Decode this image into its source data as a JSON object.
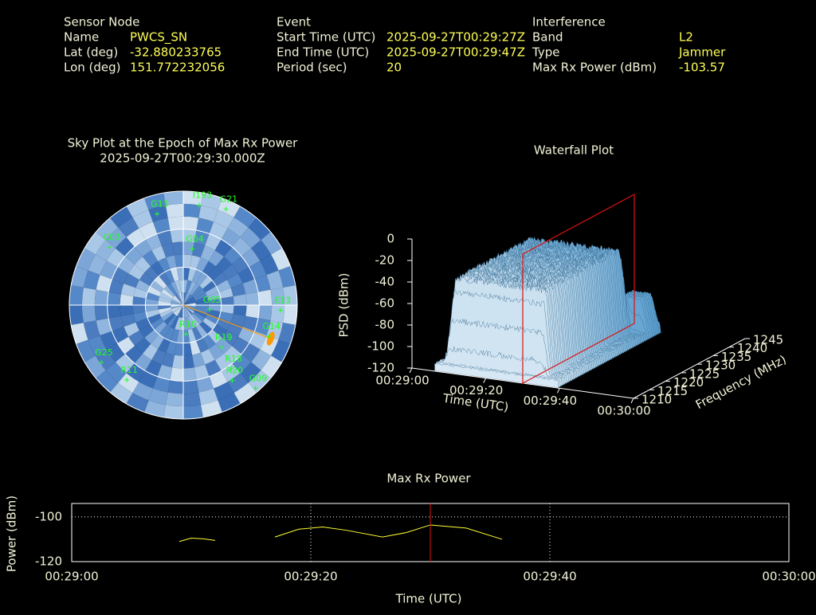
{
  "header": {
    "sensor": {
      "title": "Sensor Node",
      "rows": [
        [
          "Name",
          "PWCS_SN"
        ],
        [
          "Lat (deg)",
          "-32.880233765"
        ],
        [
          "Lon (deg)",
          "151.772232056"
        ]
      ]
    },
    "event": {
      "title": "Event",
      "rows": [
        [
          "Start Time (UTC)",
          "2025-09-27T00:29:27Z"
        ],
        [
          "End Time (UTC)",
          "2025-09-27T00:29:47Z"
        ],
        [
          "Period (sec)",
          "20"
        ]
      ]
    },
    "interference": {
      "title": "Interference",
      "rows": [
        [
          "Band",
          "L2"
        ],
        [
          "Type",
          "Jammer"
        ],
        [
          "Max Rx Power (dBm)",
          "-103.57"
        ]
      ]
    }
  },
  "chart_data": [
    {
      "type": "polar",
      "title": "Sky Plot at the Epoch of Max Rx Power",
      "subtitle": "2025-09-27T00:29:30.000Z",
      "rticks": [
        0,
        30,
        60
      ],
      "satellites": [
        {
          "label": "G13",
          "az": 344,
          "el": 15
        },
        {
          "label": "I193",
          "az": 9,
          "el": 10
        },
        {
          "label": "G21",
          "az": 24,
          "el": 7
        },
        {
          "label": "G14",
          "az": 110,
          "el": 18
        },
        {
          "label": "E13",
          "az": 93,
          "el": 13
        },
        {
          "label": "G25",
          "az": 235,
          "el": 11
        },
        {
          "label": "R11",
          "az": 217,
          "el": 16
        },
        {
          "label": "R19",
          "az": 138,
          "el": 45
        },
        {
          "label": "R18",
          "az": 143,
          "el": 27
        },
        {
          "label": "G09",
          "az": 139,
          "el": 3
        },
        {
          "label": "G04",
          "az": 9,
          "el": 45
        },
        {
          "label": "G05",
          "az": 100,
          "el": 69
        },
        {
          "label": "R10",
          "az": 175,
          "el": 67
        },
        {
          "label": "C03",
          "az": 308,
          "el": 16
        },
        {
          "label": "R20",
          "az": 147,
          "el": 19
        }
      ],
      "jammer": {
        "az": 111,
        "el": 16,
        "color": "#ff9900"
      }
    },
    {
      "type": "surface",
      "title": "Waterfall Plot",
      "xlabel": "Time (UTC)",
      "ylabel": "Frequency (MHz)",
      "zlabel": "PSD (dBm)",
      "xlim": [
        "00:29:00",
        "00:30:00"
      ],
      "xticks": [
        "00:29:00",
        "00:29:20",
        "00:29:40",
        "00:30:00"
      ],
      "ylim": [
        1210,
        1245
      ],
      "yticks": [
        1210,
        1215,
        1220,
        1225,
        1230,
        1235,
        1240,
        1245
      ],
      "zlim": [
        -120,
        0
      ],
      "zticks": [
        0,
        -20,
        -40,
        -60,
        -80,
        -100,
        -120
      ],
      "marker_x": "00:29:30"
    },
    {
      "type": "line",
      "title": "Max Rx Power",
      "xlabel": "Time (UTC)",
      "ylabel": "Power (dBm)",
      "x": [
        "00:29:09",
        "00:29:10",
        "00:29:11",
        "00:29:12",
        "00:29:14",
        "00:29:17",
        "00:29:19",
        "00:29:21",
        "00:29:23",
        "00:29:26",
        "00:29:28",
        "00:29:30",
        "00:29:33",
        "00:29:36"
      ],
      "values": [
        -111,
        -109.5,
        -109.8,
        -110.5,
        null,
        -109,
        -105.5,
        -104.5,
        -106,
        -109,
        -107,
        -103.6,
        -105,
        -110
      ],
      "color": "#ffff33",
      "xlim": [
        "00:29:00",
        "00:30:00"
      ],
      "xticks": [
        "00:29:00",
        "00:29:20",
        "00:29:40",
        "00:30:00"
      ],
      "ylim": [
        -120,
        -94
      ],
      "yticks": [
        -100,
        -120
      ],
      "marker_x": "00:29:30",
      "grid": true
    }
  ]
}
